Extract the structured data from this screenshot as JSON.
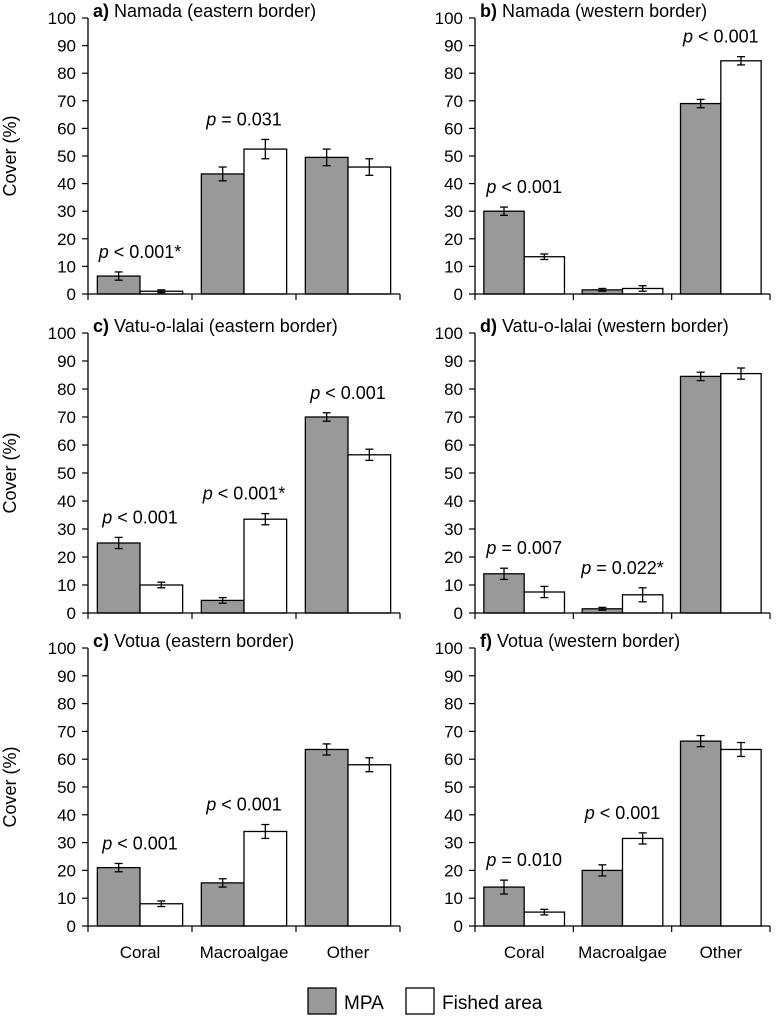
{
  "legend": {
    "mpa_label": "MPA",
    "fished_label": "Fished area"
  },
  "colors": {
    "mpa": "#999999",
    "fished": "#ffffff",
    "axis": "#000000"
  },
  "chart_data": [
    {
      "type": "bar",
      "label": "a)",
      "title": "Namada (eastern border)",
      "ylabel": "Cover (%)",
      "ylim": [
        0,
        100
      ],
      "yticks": [
        0,
        10,
        20,
        30,
        40,
        50,
        60,
        70,
        80,
        90,
        100
      ],
      "categories": [
        "Coral",
        "Macroalgae",
        "Other"
      ],
      "show_categories": false,
      "series": [
        {
          "name": "MPA",
          "values": [
            6.5,
            43.5,
            49.5
          ],
          "errors": [
            1.5,
            2.5,
            3
          ]
        },
        {
          "name": "Fished area",
          "values": [
            1,
            52.5,
            46
          ],
          "errors": [
            0.5,
            3.5,
            3
          ]
        }
      ],
      "annotations": [
        {
          "category": "Coral",
          "prefix": "p",
          "text": " < 0.001*"
        },
        {
          "category": "Macroalgae",
          "prefix": "p",
          "text": " = 0.031"
        }
      ]
    },
    {
      "type": "bar",
      "label": "b)",
      "title": "Namada (western border)",
      "ylabel": "",
      "ylim": [
        0,
        100
      ],
      "yticks": [
        0,
        10,
        20,
        30,
        40,
        50,
        60,
        70,
        80,
        90,
        100
      ],
      "categories": [
        "Coral",
        "Macroalgae",
        "Other"
      ],
      "show_categories": false,
      "series": [
        {
          "name": "MPA",
          "values": [
            30,
            1.5,
            69
          ],
          "errors": [
            1.5,
            0.5,
            1.5
          ]
        },
        {
          "name": "Fished area",
          "values": [
            13.5,
            2,
            84.5
          ],
          "errors": [
            1,
            1,
            1.5
          ]
        }
      ],
      "annotations": [
        {
          "category": "Coral",
          "prefix": "p",
          "text": " < 0.001"
        },
        {
          "category": "Other",
          "prefix": "p",
          "text": " < 0.001"
        }
      ]
    },
    {
      "type": "bar",
      "label": "c)",
      "title": "Vatu-o-lalai (eastern border)",
      "ylabel": "Cover (%)",
      "ylim": [
        0,
        100
      ],
      "yticks": [
        0,
        10,
        20,
        30,
        40,
        50,
        60,
        70,
        80,
        90,
        100
      ],
      "categories": [
        "Coral",
        "Macroalgae",
        "Other"
      ],
      "show_categories": false,
      "series": [
        {
          "name": "MPA",
          "values": [
            25,
            4.5,
            70
          ],
          "errors": [
            2,
            1,
            1.5
          ]
        },
        {
          "name": "Fished area",
          "values": [
            10,
            33.5,
            56.5
          ],
          "errors": [
            1,
            2,
            2
          ]
        }
      ],
      "annotations": [
        {
          "category": "Coral",
          "prefix": "p",
          "text": " < 0.001"
        },
        {
          "category": "Macroalgae",
          "prefix": "p",
          "text": " < 0.001*"
        },
        {
          "category": "Other",
          "prefix": "p",
          "text": " < 0.001"
        }
      ]
    },
    {
      "type": "bar",
      "label": "d)",
      "title": "Vatu-o-lalai (western border)",
      "ylabel": "",
      "ylim": [
        0,
        100
      ],
      "yticks": [
        0,
        10,
        20,
        30,
        40,
        50,
        60,
        70,
        80,
        90,
        100
      ],
      "categories": [
        "Coral",
        "Macroalgae",
        "Other"
      ],
      "show_categories": false,
      "series": [
        {
          "name": "MPA",
          "values": [
            14,
            1.5,
            84.5
          ],
          "errors": [
            2,
            0.5,
            1.5
          ]
        },
        {
          "name": "Fished area",
          "values": [
            7.5,
            6.5,
            85.5
          ],
          "errors": [
            2,
            2.5,
            2
          ]
        }
      ],
      "annotations": [
        {
          "category": "Coral",
          "prefix": "p",
          "text": " = 0.007"
        },
        {
          "category": "Macroalgae",
          "prefix": "p",
          "text": " = 0.022*"
        }
      ]
    },
    {
      "type": "bar",
      "label": "c)",
      "title": "Votua (eastern border)",
      "ylabel": "Cover (%)",
      "ylim": [
        0,
        100
      ],
      "yticks": [
        0,
        10,
        20,
        30,
        40,
        50,
        60,
        70,
        80,
        90,
        100
      ],
      "categories": [
        "Coral",
        "Macroalgae",
        "Other"
      ],
      "show_categories": true,
      "series": [
        {
          "name": "MPA",
          "values": [
            21,
            15.5,
            63.5
          ],
          "errors": [
            1.5,
            1.5,
            2
          ]
        },
        {
          "name": "Fished area",
          "values": [
            8,
            34,
            58
          ],
          "errors": [
            1,
            2.5,
            2.5
          ]
        }
      ],
      "annotations": [
        {
          "category": "Coral",
          "prefix": "p",
          "text": " < 0.001"
        },
        {
          "category": "Macroalgae",
          "prefix": "p",
          "text": " < 0.001"
        }
      ]
    },
    {
      "type": "bar",
      "label": "f)",
      "title": "Votua (western border)",
      "ylabel": "",
      "ylim": [
        0,
        100
      ],
      "yticks": [
        0,
        10,
        20,
        30,
        40,
        50,
        60,
        70,
        80,
        90,
        100
      ],
      "categories": [
        "Coral",
        "Macroalgae",
        "Other"
      ],
      "show_categories": true,
      "series": [
        {
          "name": "MPA",
          "values": [
            14,
            20,
            66.5
          ],
          "errors": [
            2.5,
            2,
            2
          ]
        },
        {
          "name": "Fished area",
          "values": [
            5,
            31.5,
            63.5
          ],
          "errors": [
            1,
            2,
            2.5
          ]
        }
      ],
      "annotations": [
        {
          "category": "Coral",
          "prefix": "p",
          "text": " = 0.010"
        },
        {
          "category": "Macroalgae",
          "prefix": "p",
          "text": " < 0.001"
        }
      ]
    }
  ]
}
